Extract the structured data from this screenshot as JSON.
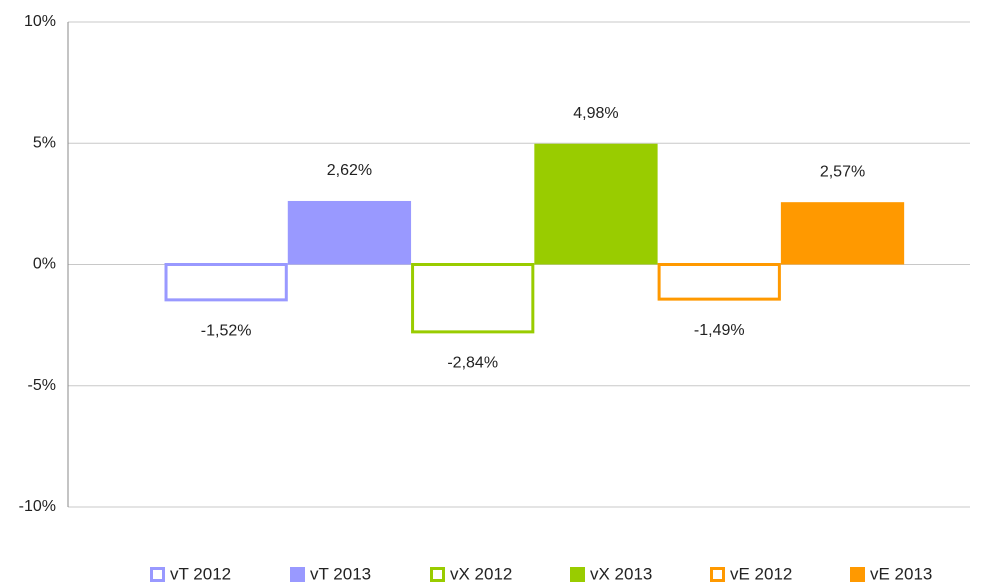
{
  "chart_data": {
    "type": "bar",
    "categories": [
      null
    ],
    "series": [
      {
        "name": "vT 2012",
        "color": "#9999ff",
        "outline": true,
        "values": [
          -1.52
        ],
        "value_labels": [
          "-1,52%"
        ]
      },
      {
        "name": "vT 2013",
        "color": "#9999ff",
        "outline": false,
        "values": [
          2.62
        ],
        "value_labels": [
          "2,62%"
        ]
      },
      {
        "name": "vX 2012",
        "color": "#99cc00",
        "outline": true,
        "values": [
          -2.84
        ],
        "value_labels": [
          "-2,84%"
        ]
      },
      {
        "name": "vX 2013",
        "color": "#99cc00",
        "outline": false,
        "values": [
          4.98
        ],
        "value_labels": [
          "4,98%"
        ]
      },
      {
        "name": "vE 2012",
        "color": "#ff9900",
        "outline": true,
        "values": [
          -1.49
        ],
        "value_labels": [
          "-1,49%"
        ]
      },
      {
        "name": "vE 2013",
        "color": "#ff9900",
        "outline": false,
        "values": [
          2.57
        ],
        "value_labels": [
          "2,57%"
        ]
      }
    ],
    "ylim": [
      -10,
      10
    ],
    "yticks": [
      {
        "value": -10,
        "label": "-10%"
      },
      {
        "value": -5,
        "label": "-5%"
      },
      {
        "value": 0,
        "label": "0%"
      },
      {
        "value": 5,
        "label": "5%"
      },
      {
        "value": 10,
        "label": "10%"
      }
    ],
    "grid": true,
    "legend": "bottom"
  }
}
